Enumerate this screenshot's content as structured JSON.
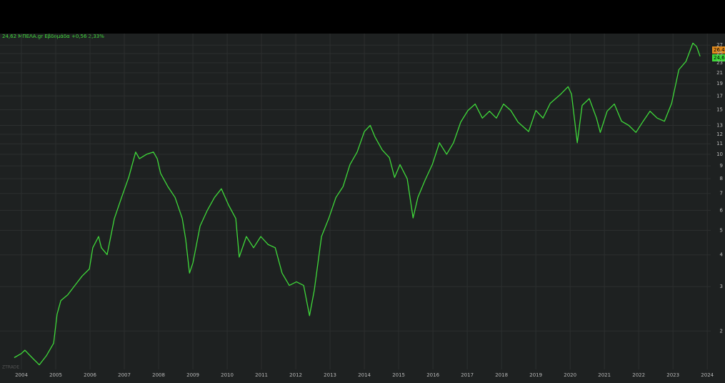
{
  "chart_data": {
    "type": "line",
    "title": "24,62 ΜΠΕΛΑ.gr Εβδομάδα +0,56 2,33%",
    "annotations": [
      "26,40",
      "24,62",
      "ZTRADE"
    ],
    "log_scale": true,
    "grid": true,
    "xlim": [
      2003.375,
      2024.1
    ],
    "ylim": [
      1.41,
      30
    ],
    "xticks": [
      2004,
      2005,
      2006,
      2007,
      2008,
      2009,
      2010,
      2011,
      2012,
      2013,
      2014,
      2015,
      2016,
      2017,
      2018,
      2019,
      2020,
      2021,
      2022,
      2023,
      2024
    ],
    "yticks": [
      2,
      3,
      4,
      5,
      6,
      7,
      8,
      9,
      10,
      11,
      12,
      13,
      15,
      17,
      19,
      21,
      23,
      25,
      27
    ],
    "series": [
      {
        "name": "ΜΠΕΛΑ",
        "color": "#3fd83a",
        "x": [
          2003.79,
          2004.0,
          2004.1,
          2004.31,
          2004.52,
          2004.73,
          2004.94,
          2005.04,
          2005.15,
          2005.35,
          2005.56,
          2005.77,
          2005.98,
          2006.08,
          2006.25,
          2006.33,
          2006.5,
          2006.71,
          2006.92,
          2007.13,
          2007.33,
          2007.44,
          2007.65,
          2007.85,
          2007.96,
          2008.06,
          2008.27,
          2008.48,
          2008.69,
          2008.79,
          2008.9,
          2009.0,
          2009.21,
          2009.42,
          2009.63,
          2009.83,
          2010.04,
          2010.25,
          2010.35,
          2010.56,
          2010.77,
          2010.98,
          2011.19,
          2011.4,
          2011.6,
          2011.81,
          2012.02,
          2012.23,
          2012.4,
          2012.54,
          2012.75,
          2012.96,
          2013.17,
          2013.38,
          2013.58,
          2013.79,
          2014.0,
          2014.17,
          2014.31,
          2014.52,
          2014.73,
          2014.88,
          2015.04,
          2015.25,
          2015.42,
          2015.56,
          2015.77,
          2015.98,
          2016.19,
          2016.4,
          2016.6,
          2016.81,
          2017.02,
          2017.23,
          2017.44,
          2017.65,
          2017.85,
          2018.06,
          2018.27,
          2018.48,
          2018.79,
          2019.0,
          2019.21,
          2019.42,
          2019.73,
          2019.94,
          2020.04,
          2020.21,
          2020.35,
          2020.56,
          2020.77,
          2020.88,
          2021.08,
          2021.29,
          2021.5,
          2021.71,
          2021.92,
          2022.13,
          2022.33,
          2022.54,
          2022.75,
          2022.96,
          2023.17,
          2023.38,
          2023.58,
          2023.69,
          2023.79
        ],
        "values": [
          1.57,
          1.63,
          1.68,
          1.57,
          1.47,
          1.6,
          1.79,
          2.33,
          2.64,
          2.78,
          3.03,
          3.3,
          3.52,
          4.27,
          4.73,
          4.27,
          4.01,
          5.57,
          6.75,
          8.12,
          10.2,
          9.6,
          10.0,
          10.2,
          9.6,
          8.4,
          7.45,
          6.75,
          5.57,
          4.6,
          3.39,
          3.72,
          5.2,
          6.0,
          6.75,
          7.3,
          6.3,
          5.57,
          3.92,
          4.73,
          4.27,
          4.73,
          4.4,
          4.27,
          3.39,
          3.03,
          3.13,
          3.03,
          2.3,
          2.9,
          4.73,
          5.57,
          6.75,
          7.45,
          9.1,
          10.2,
          12.3,
          13.0,
          11.7,
          10.4,
          9.7,
          8.1,
          9.1,
          8.0,
          5.6,
          6.75,
          7.9,
          9.1,
          11.1,
          10.0,
          11.1,
          13.4,
          14.9,
          15.8,
          13.9,
          14.8,
          13.9,
          15.8,
          14.9,
          13.4,
          12.3,
          14.9,
          13.9,
          15.9,
          17.3,
          18.5,
          17.3,
          11.1,
          15.6,
          16.6,
          13.9,
          12.2,
          14.8,
          15.8,
          13.5,
          13.0,
          12.2,
          13.5,
          14.8,
          13.9,
          13.5,
          15.9,
          21.6,
          23.3,
          27.5,
          26.65,
          24.4
        ]
      }
    ]
  }
}
